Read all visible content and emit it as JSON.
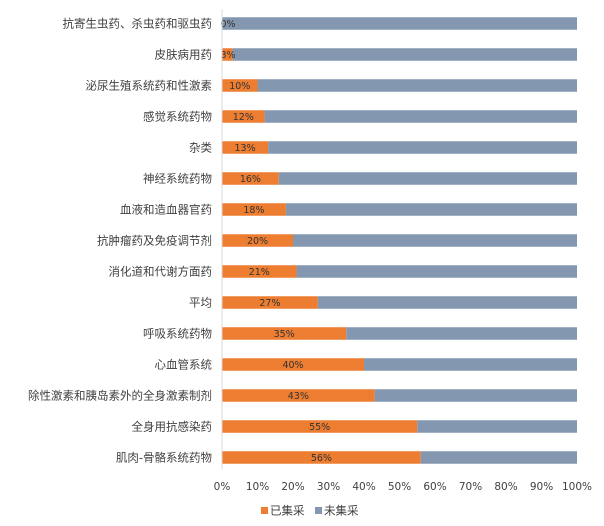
{
  "chart_data": {
    "type": "bar",
    "orientation": "horizontal",
    "stacked": "percent",
    "categories": [
      "抗寄生虫药、杀虫药和驱虫药",
      "皮肤病用药",
      "泌尿生殖系统药和性激素",
      "感觉系统药物",
      "杂类",
      "神经系统药物",
      "血液和造血器官药",
      "抗肿瘤药及免疫调节剂",
      "消化道和代谢方面药",
      "平均",
      "呼吸系统药物",
      "心血管系统",
      "除性激素和胰岛素外的全身激素制剂",
      "全身用抗感染药",
      "肌肉-骨骼系统药物"
    ],
    "series": [
      {
        "name": "已集采",
        "color": "#ED7D31",
        "values": [
          0,
          3,
          10,
          12,
          13,
          16,
          18,
          20,
          21,
          27,
          35,
          40,
          43,
          55,
          56
        ],
        "labels": [
          "0%",
          "3%",
          "10%",
          "12%",
          "13%",
          "16%",
          "18%",
          "20%",
          "21%",
          "27%",
          "35%",
          "40%",
          "43%",
          "55%",
          "56%"
        ]
      },
      {
        "name": "未集采",
        "color": "#8497B0",
        "values": [
          100,
          97,
          90,
          88,
          87,
          84,
          82,
          80,
          79,
          73,
          65,
          60,
          57,
          45,
          44
        ]
      }
    ],
    "xlim": [
      0,
      100
    ],
    "xticks": [
      "0%",
      "10%",
      "20%",
      "30%",
      "40%",
      "50%",
      "60%",
      "70%",
      "80%",
      "90%",
      "100%"
    ],
    "grid": false,
    "legend_position": "bottom"
  }
}
